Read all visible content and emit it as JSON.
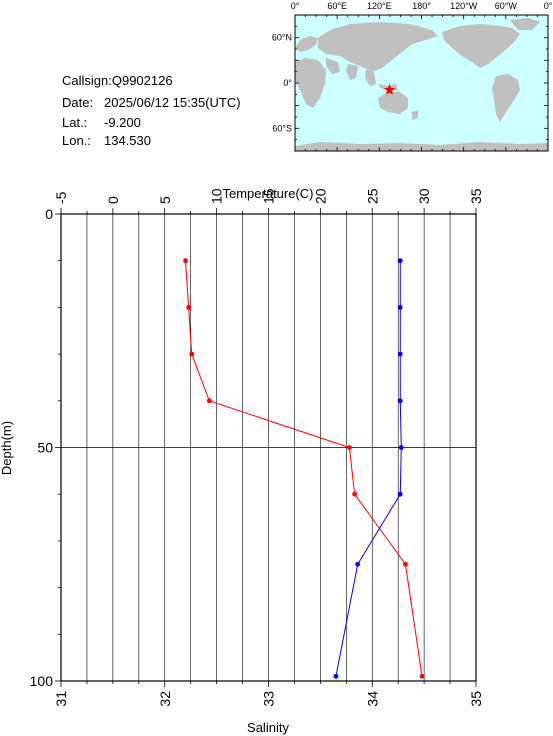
{
  "info": {
    "callsign": "Callsign:Q9902126",
    "date_label": "Date:",
    "date_value": "2025/06/12 15:35(UTC)",
    "lat_label": "Lat.:",
    "lat_value": "-9.200",
    "lon_label": "Lon.:",
    "lon_value": "134.530"
  },
  "map": {
    "top_labels": [
      "0°",
      "60°E",
      "120°E",
      "180°",
      "120°W",
      "60°W",
      "0°"
    ],
    "left_labels": [
      "60°N",
      "0°",
      "60°S"
    ],
    "ocean_color": "#ccffff",
    "land_color": "#c0c0c0",
    "marker_color": "#ff0000",
    "marker_lon": 134.53,
    "marker_lat": -9.2
  },
  "chart_data": {
    "type": "line",
    "top_axis_label": "Temperature(C)",
    "bottom_axis_label": "Salinity",
    "y_axis_label": "Depth(m)",
    "temperature_ticks": [
      "-5",
      "0",
      "5",
      "10",
      "15",
      "20",
      "25",
      "30",
      "35"
    ],
    "salinity_ticks": [
      "31",
      "32",
      "33",
      "34",
      "35"
    ],
    "depth_ticks": [
      "0",
      "50",
      "100"
    ],
    "temperature_range": [
      -5,
      35
    ],
    "salinity_range": [
      31,
      35
    ],
    "depth_range": [
      0,
      100
    ],
    "grid": true,
    "series": [
      {
        "axis": "temperature",
        "color": "#ff0000",
        "depth": [
          10,
          20,
          30,
          40,
          50,
          60,
          75,
          99
        ],
        "values": [
          7.0,
          7.3,
          7.6,
          9.3,
          22.8,
          23.3,
          28.2,
          29.8
        ]
      },
      {
        "axis": "salinity",
        "color": "#0000ff",
        "depth": [
          10,
          20,
          30,
          40,
          50,
          60,
          75,
          99
        ],
        "values": [
          34.27,
          34.27,
          34.27,
          34.27,
          34.28,
          34.27,
          33.86,
          33.65
        ]
      }
    ]
  }
}
